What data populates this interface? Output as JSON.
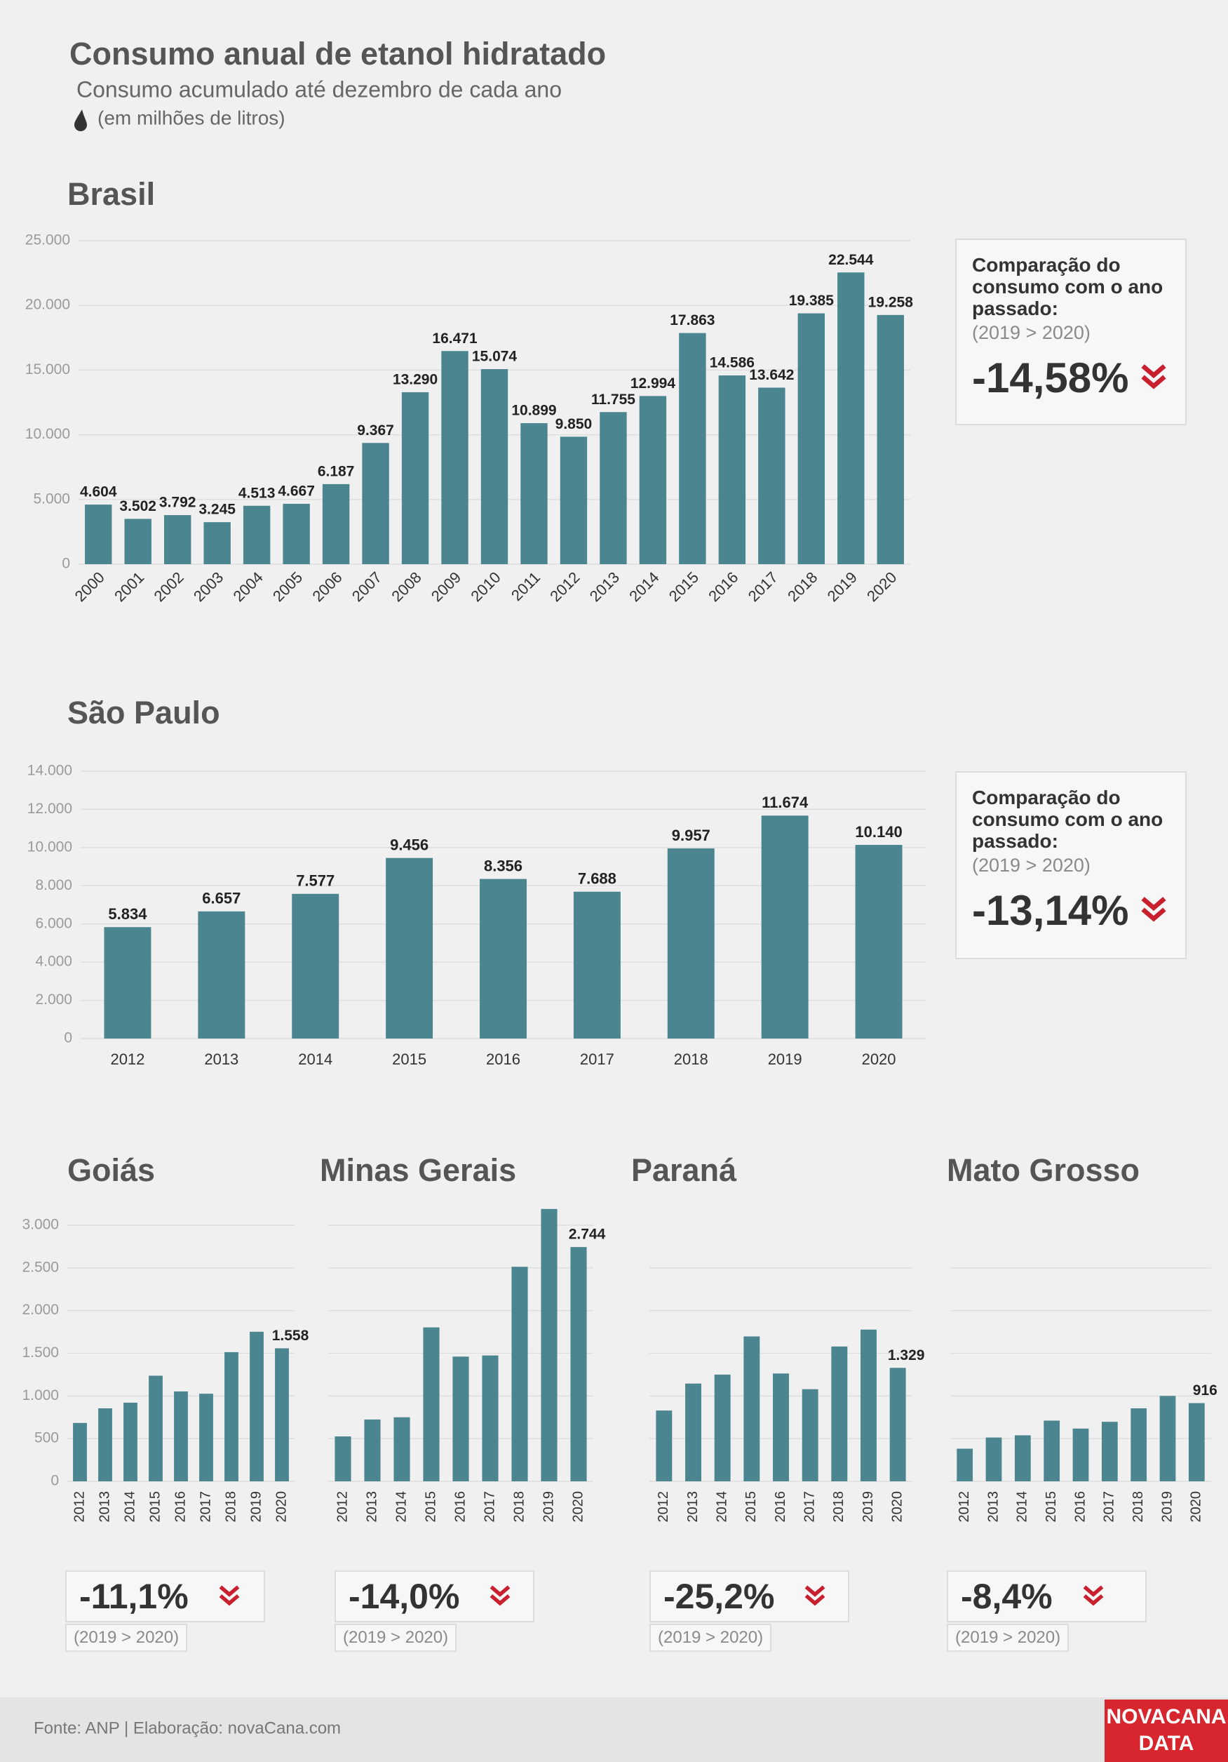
{
  "header": {
    "title": "Consumo anual de etanol hidratado",
    "subtitle": "Consumo acumulado até dezembro de cada ano",
    "unit": "(em milhões de litros)"
  },
  "chart_data": [
    {
      "type": "bar",
      "title": "Brasil",
      "color": "#4a8590",
      "categories": [
        "2000",
        "2001",
        "2002",
        "2003",
        "2004",
        "2005",
        "2006",
        "2007",
        "2008",
        "2009",
        "2010",
        "2011",
        "2012",
        "2013",
        "2014",
        "2015",
        "2016",
        "2017",
        "2018",
        "2019",
        "2020"
      ],
      "values": [
        4604,
        3502,
        3792,
        3245,
        4513,
        4667,
        6187,
        9367,
        13290,
        16471,
        15074,
        10899,
        9850,
        11755,
        12994,
        17863,
        14586,
        13642,
        19385,
        22544,
        19258
      ],
      "value_labels": [
        "4.604",
        "3.502",
        "3.792",
        "3.245",
        "4.513",
        "4.667",
        "6.187",
        "9.367",
        "13.290",
        "16.471",
        "15.074",
        "10.899",
        "9.850",
        "11.755",
        "12.994",
        "17.863",
        "14.586",
        "13.642",
        "19.385",
        "22.544",
        "19.258"
      ],
      "ylim": [
        0,
        25000
      ],
      "yticks": [
        0,
        {
          "value": 5000,
          "label": "5.000"
        },
        {
          "value": 10000,
          "label": "10.000"
        },
        {
          "value": 15000,
          "label": "15.000"
        },
        {
          "value": 20000,
          "label": "20.000"
        },
        {
          "value": 25000,
          "label": "25.000"
        }
      ],
      "ytick_labels": true,
      "grid": true,
      "comparison": {
        "label": "Comparação do consumo com o ano passado:",
        "period": "(2019 > 2020)",
        "change": "-14,58%"
      }
    },
    {
      "type": "bar",
      "title": "São Paulo",
      "color": "#4a8590",
      "categories": [
        "2012",
        "2013",
        "2014",
        "2015",
        "2016",
        "2017",
        "2018",
        "2019",
        "2020"
      ],
      "values": [
        5834,
        6657,
        7577,
        9456,
        8356,
        7688,
        9957,
        11674,
        10140
      ],
      "value_labels": [
        "5.834",
        "6.657",
        "7.577",
        "9.456",
        "8.356",
        "7.688",
        "9.957",
        "11.674",
        "10.140"
      ],
      "ylim": [
        0,
        14000
      ],
      "yticks": [
        0,
        {
          "value": 2000,
          "label": "2.000"
        },
        {
          "value": 4000,
          "label": "4.000"
        },
        {
          "value": 6000,
          "label": "6.000"
        },
        {
          "value": 8000,
          "label": "8.000"
        },
        {
          "value": 10000,
          "label": "10.000"
        },
        {
          "value": 12000,
          "label": "12.000"
        },
        {
          "value": 14000,
          "label": "14.000"
        }
      ],
      "ytick_labels": true,
      "grid": true,
      "comparison": {
        "label": "Comparação do consumo com o ano passado:",
        "period": "(2019 > 2020)",
        "change": "-13,14%"
      }
    },
    {
      "type": "bar",
      "title": "Goiás",
      "color": "#4a8590",
      "categories": [
        "2012",
        "2013",
        "2014",
        "2015",
        "2016",
        "2017",
        "2018",
        "2019",
        "2020"
      ],
      "values": [
        684,
        855,
        921,
        1237,
        1053,
        1026,
        1513,
        1752,
        1558
      ],
      "value_labels": [
        null,
        null,
        null,
        null,
        null,
        null,
        null,
        null,
        "1.558"
      ],
      "ylim": [
        0,
        3000
      ],
      "yticks": [
        0,
        500,
        {
          "value": 1000,
          "label": "1.000"
        },
        {
          "value": 1500,
          "label": "1.500"
        },
        {
          "value": 2000,
          "label": "2.000"
        },
        {
          "value": 2500,
          "label": "2.500"
        },
        {
          "value": 3000,
          "label": "3.000"
        }
      ],
      "ytick_labels": true,
      "grid": true,
      "comparison": {
        "period": "(2019 > 2020)",
        "change": "-11,1%"
      }
    },
    {
      "type": "bar",
      "title": "Minas Gerais",
      "color": "#4a8590",
      "categories": [
        "2012",
        "2013",
        "2014",
        "2015",
        "2016",
        "2017",
        "2018",
        "2019",
        "2020"
      ],
      "values": [
        526,
        724,
        750,
        1803,
        1461,
        1474,
        2513,
        3190,
        2744
      ],
      "value_labels": [
        null,
        null,
        null,
        null,
        null,
        null,
        null,
        null,
        "2.744"
      ],
      "ylim": [
        0,
        3000
      ],
      "yticks": [
        0,
        500,
        1000,
        1500,
        2000,
        2500,
        3000
      ],
      "ytick_labels": false,
      "grid": true,
      "comparison": {
        "period": "(2019 > 2020)",
        "change": "-14,0%"
      }
    },
    {
      "type": "bar",
      "title": "Paraná",
      "color": "#4a8590",
      "categories": [
        "2012",
        "2013",
        "2014",
        "2015",
        "2016",
        "2017",
        "2018",
        "2019",
        "2020"
      ],
      "values": [
        829,
        1145,
        1250,
        1697,
        1263,
        1079,
        1579,
        1777,
        1329
      ],
      "value_labels": [
        null,
        null,
        null,
        null,
        null,
        null,
        null,
        null,
        "1.329"
      ],
      "ylim": [
        0,
        3000
      ],
      "yticks": [
        0,
        500,
        1000,
        1500,
        2000,
        2500
      ],
      "ytick_labels": false,
      "grid": true,
      "comparison": {
        "period": "(2019 > 2020)",
        "change": "-25,2%"
      }
    },
    {
      "type": "bar",
      "title": "Mato Grosso",
      "color": "#4a8590",
      "categories": [
        "2012",
        "2013",
        "2014",
        "2015",
        "2016",
        "2017",
        "2018",
        "2019",
        "2020"
      ],
      "values": [
        382,
        513,
        539,
        711,
        618,
        697,
        855,
        1000,
        916
      ],
      "value_labels": [
        null,
        null,
        null,
        null,
        null,
        null,
        null,
        null,
        "916"
      ],
      "ylim": [
        0,
        3000
      ],
      "yticks": [
        0,
        500,
        1000,
        1500,
        2000,
        2500
      ],
      "ytick_labels": false,
      "grid": true,
      "comparison": {
        "period": "(2019 > 2020)",
        "change": "-8,4%"
      }
    }
  ],
  "footer": {
    "source": "Fonte: ANP | Elaboração: novaCana.com",
    "logo": [
      "NOVACANA",
      "DATA"
    ]
  }
}
